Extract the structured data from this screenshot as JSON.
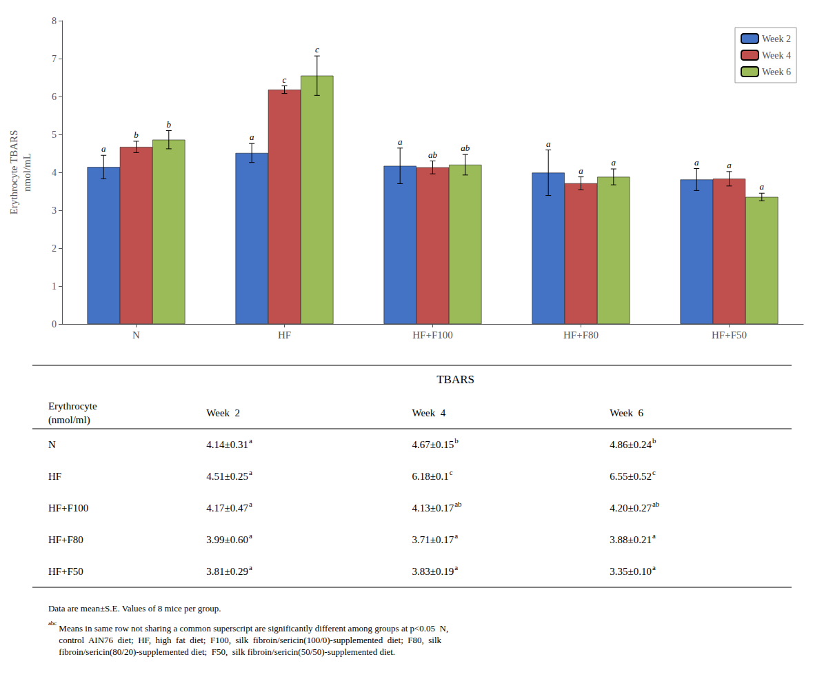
{
  "chart_data": {
    "type": "bar",
    "categories": [
      "N",
      "HF",
      "HF+F100",
      "HF+F80",
      "HF+F50"
    ],
    "series": [
      {
        "name": "Week 2",
        "color": "#4472C4",
        "values": [
          4.14,
          4.51,
          4.17,
          3.99,
          3.81
        ],
        "errors": [
          0.31,
          0.25,
          0.47,
          0.6,
          0.29
        ],
        "annotations": [
          "a",
          "a",
          "a",
          "a",
          "a"
        ]
      },
      {
        "name": "Week 4",
        "color": "#C0504D",
        "values": [
          4.67,
          6.18,
          4.13,
          3.71,
          3.83
        ],
        "errors": [
          0.15,
          0.1,
          0.17,
          0.17,
          0.19
        ],
        "annotations": [
          "b",
          "c",
          "ab",
          "a",
          "a"
        ]
      },
      {
        "name": "Week 6",
        "color": "#9BBB59",
        "values": [
          4.86,
          6.55,
          4.2,
          3.88,
          3.35
        ],
        "errors": [
          0.24,
          0.52,
          0.27,
          0.21,
          0.1
        ],
        "annotations": [
          "b",
          "c",
          "ab",
          "a",
          "a"
        ]
      }
    ],
    "ylabel": "Erythrocyte TBARS\nnmol/mL",
    "ylim": [
      0,
      8
    ],
    "yticks": [
      0,
      1,
      2,
      3,
      4,
      5,
      6,
      7,
      8
    ],
    "grid": false,
    "legend": "upper right",
    "table": {
      "title": "TBARS",
      "row_header": [
        "Erythrocyte",
        "(nmol/ml)"
      ],
      "columns": [
        "Week  2",
        "Week  4",
        "Week  6"
      ],
      "rows": [
        {
          "label": "N",
          "cells": [
            "4.14±0.31",
            "4.67±0.15",
            "4.86±0.24"
          ],
          "superscripts": [
            "a",
            "b",
            "b"
          ]
        },
        {
          "label": "HF",
          "cells": [
            "4.51±0.25",
            "6.18±0.1",
            "6.55±0.52"
          ],
          "superscripts": [
            "a",
            "c",
            "c"
          ]
        },
        {
          "label": "HF+F100",
          "cells": [
            "4.17±0.47",
            "4.13±0.17",
            "4.20±0.27"
          ],
          "superscripts": [
            "a",
            "ab",
            "ab"
          ]
        },
        {
          "label": "HF+F80",
          "cells": [
            "3.99±0.60",
            "3.71±0.17",
            "3.88±0.21"
          ],
          "superscripts": [
            "a",
            "a",
            "a"
          ]
        },
        {
          "label": "HF+F50",
          "cells": [
            "3.81±0.29",
            "3.83±0.19",
            "3.35±0.10"
          ],
          "superscripts": [
            "a",
            "a",
            "a"
          ]
        }
      ]
    },
    "footnotes": [
      {
        "text": "Data are mean±S.E. Values of 8 mice per group."
      },
      {
        "superscript": "abc",
        "text": "Means in same row not sharing a common superscript are significantly different among groups at p<0.05  N,\ncontrol  AIN76  diet;  HF,  high  fat  diet;  F100,  silk  fibroin/sericin(100/0)-supplemented  diet;  F80,  silk\nfibroin/sericin(80/20)-supplemented diet;  F50,  silk fibroin/sericin(50/50)-supplemented diet."
      }
    ]
  }
}
